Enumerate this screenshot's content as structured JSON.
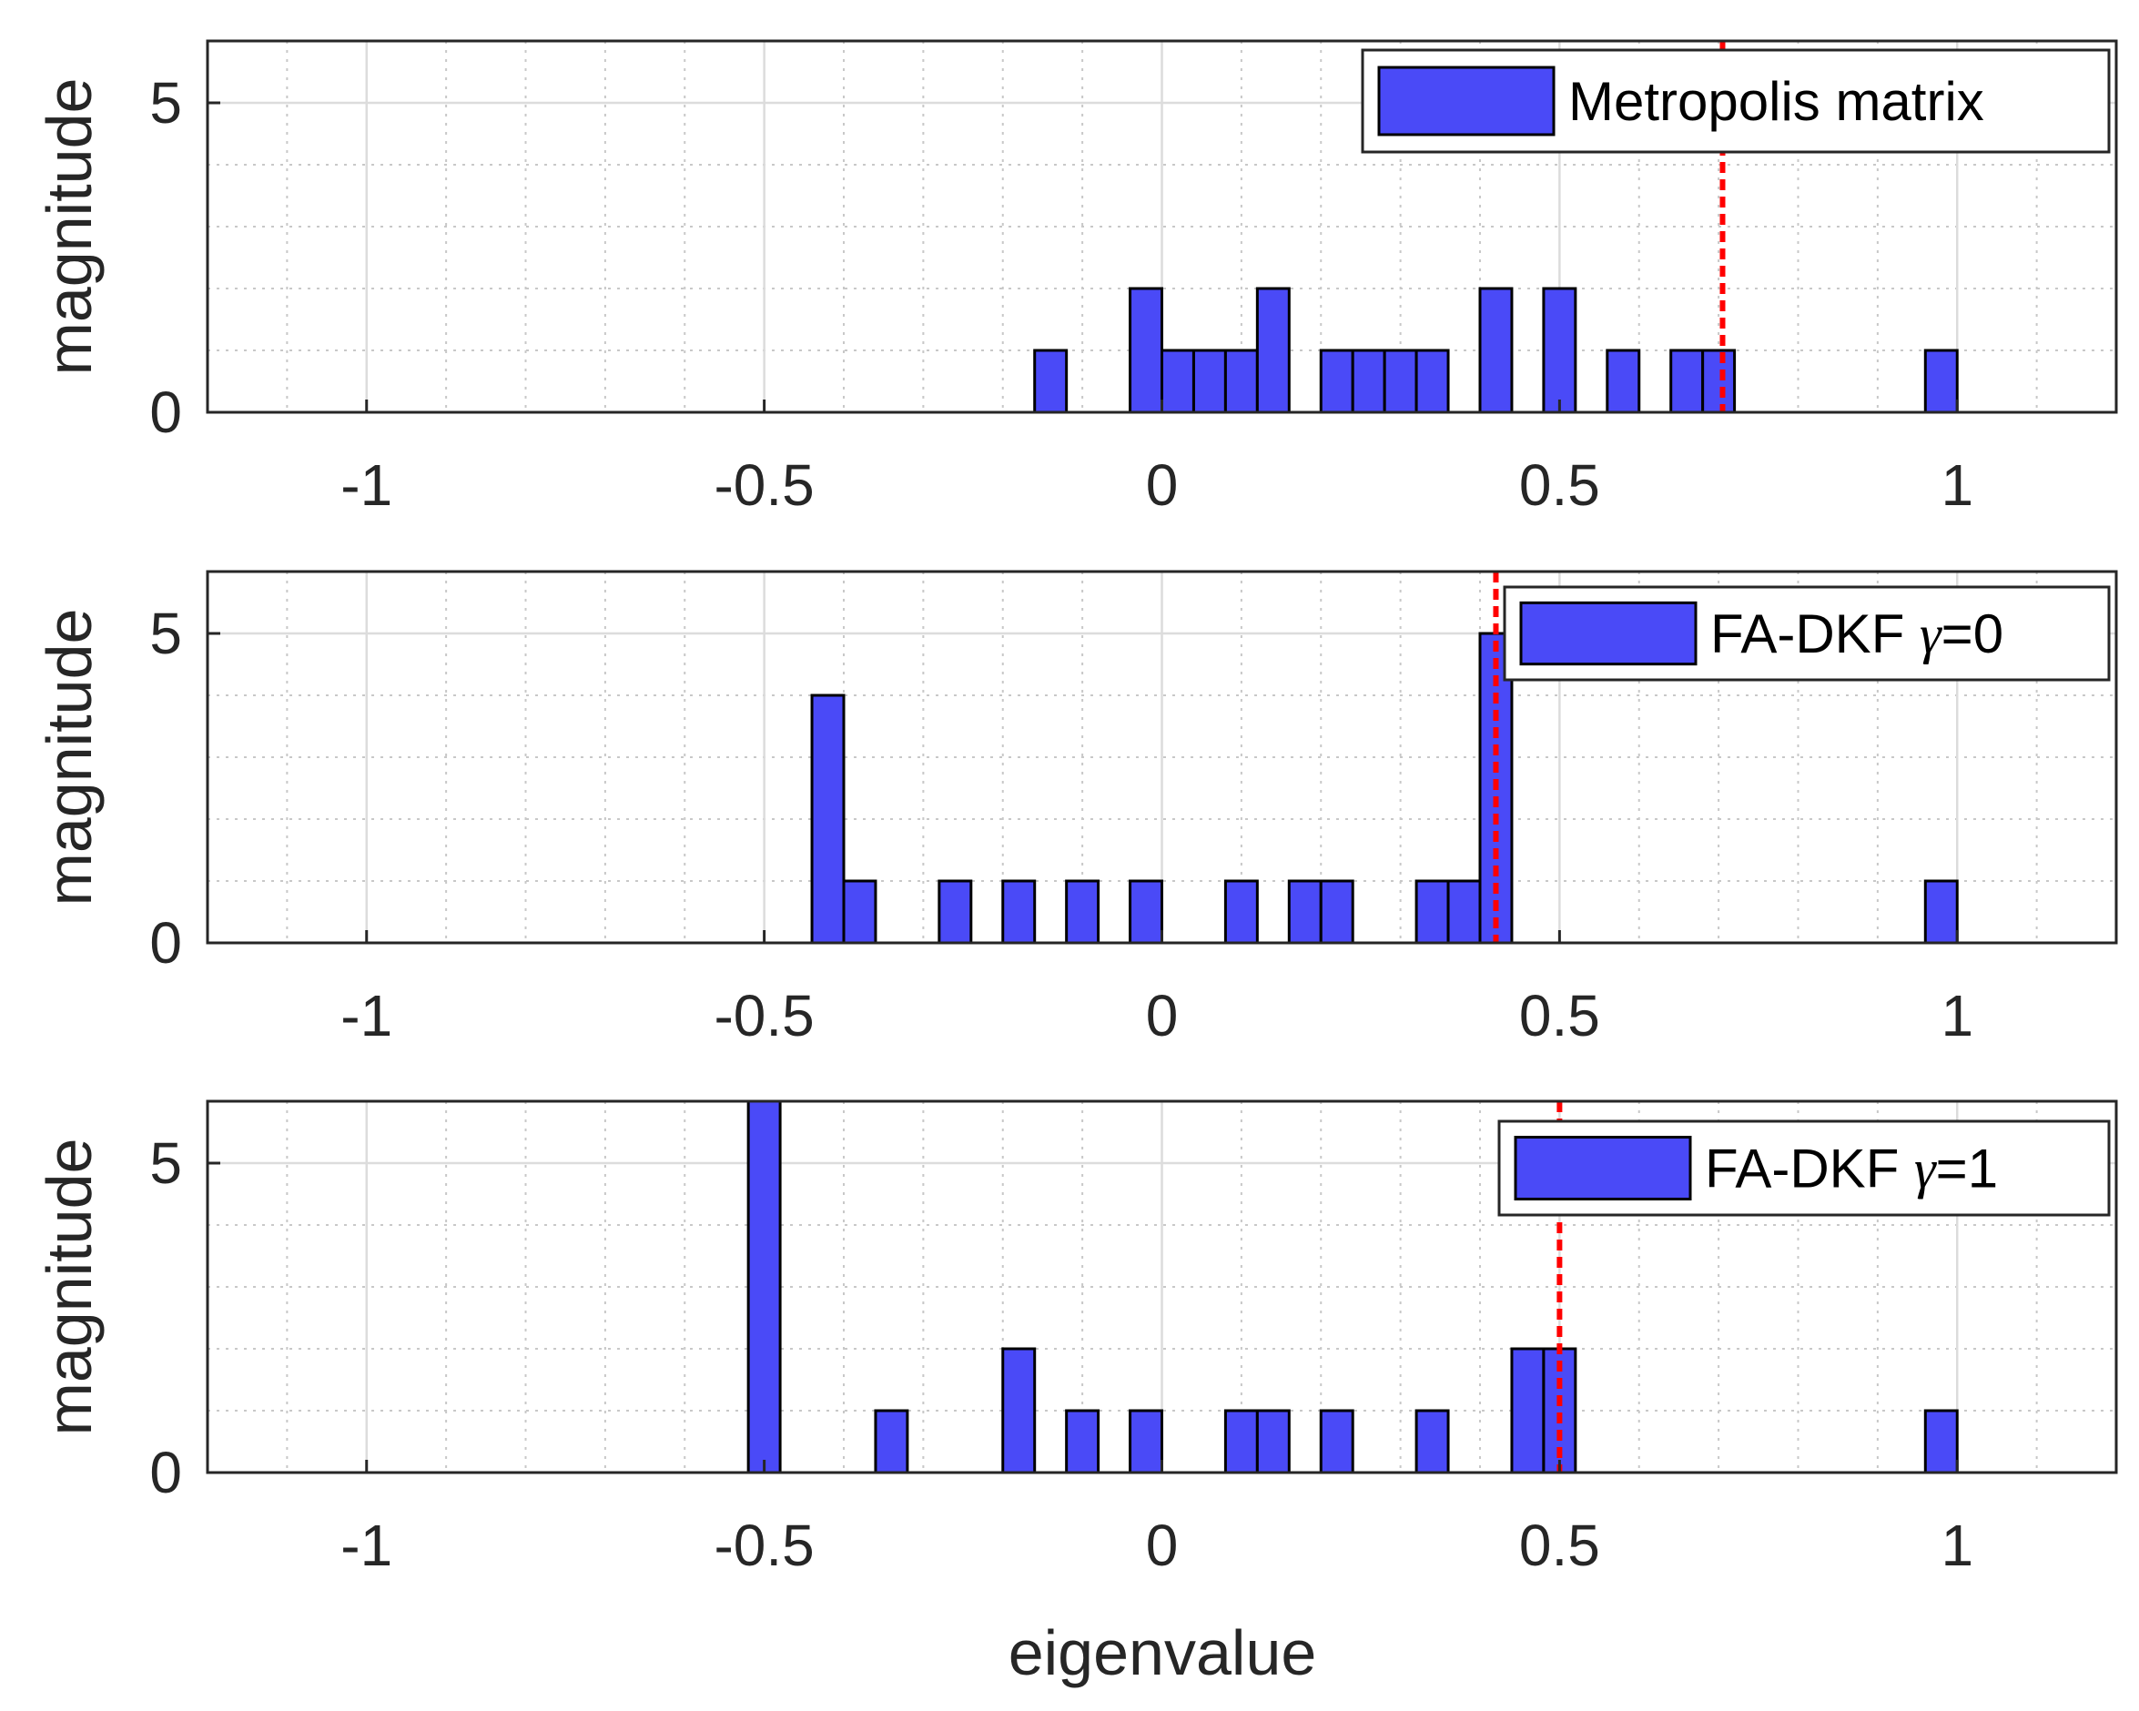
{
  "chart_data": [
    {
      "type": "bar",
      "title": "",
      "xlabel": "",
      "ylabel": "magnitude",
      "xlim": [
        -1.2,
        1.2
      ],
      "ylim": [
        0,
        6
      ],
      "bin_width": 0.04,
      "xticks": [
        "-1",
        "-0.5",
        "0",
        "0.5",
        "1"
      ],
      "yticks": [
        "0",
        "5"
      ],
      "grid": true,
      "legend": {
        "label": "Metropolis matrix",
        "position": "top-right"
      },
      "reference_line": 0.705,
      "bins": [
        {
          "x": -0.14,
          "count": 1
        },
        {
          "x": -0.02,
          "count": 2
        },
        {
          "x": 0.02,
          "count": 1
        },
        {
          "x": 0.06,
          "count": 1
        },
        {
          "x": 0.1,
          "count": 1
        },
        {
          "x": 0.14,
          "count": 2
        },
        {
          "x": 0.22,
          "count": 1
        },
        {
          "x": 0.26,
          "count": 1
        },
        {
          "x": 0.3,
          "count": 1
        },
        {
          "x": 0.34,
          "count": 1
        },
        {
          "x": 0.42,
          "count": 2
        },
        {
          "x": 0.5,
          "count": 2
        },
        {
          "x": 0.58,
          "count": 1
        },
        {
          "x": 0.66,
          "count": 1
        },
        {
          "x": 0.7,
          "count": 1
        },
        {
          "x": 0.98,
          "count": 1
        }
      ]
    },
    {
      "type": "bar",
      "title": "",
      "xlabel": "",
      "ylabel": "magnitude",
      "xlim": [
        -1.2,
        1.2
      ],
      "ylim": [
        0,
        6
      ],
      "bin_width": 0.04,
      "xticks": [
        "-1",
        "-0.5",
        "0",
        "0.5",
        "1"
      ],
      "yticks": [
        "0",
        "5"
      ],
      "grid": true,
      "legend": {
        "label": "FA-DKF",
        "symbol": "γ",
        "value": "=0",
        "position": "top-right"
      },
      "reference_line": 0.42,
      "bins": [
        {
          "x": -0.42,
          "count": 4
        },
        {
          "x": -0.38,
          "count": 1
        },
        {
          "x": -0.26,
          "count": 1
        },
        {
          "x": -0.18,
          "count": 1
        },
        {
          "x": -0.1,
          "count": 1
        },
        {
          "x": -0.02,
          "count": 1
        },
        {
          "x": 0.1,
          "count": 1
        },
        {
          "x": 0.18,
          "count": 1
        },
        {
          "x": 0.22,
          "count": 1
        },
        {
          "x": 0.34,
          "count": 1
        },
        {
          "x": 0.38,
          "count": 1
        },
        {
          "x": 0.42,
          "count": 5
        },
        {
          "x": 0.98,
          "count": 1
        }
      ]
    },
    {
      "type": "bar",
      "title": "",
      "xlabel": "eigenvalue",
      "ylabel": "magnitude",
      "xlim": [
        -1.2,
        1.2
      ],
      "ylim": [
        0,
        6
      ],
      "bin_width": 0.04,
      "xticks": [
        "-1",
        "-0.5",
        "0",
        "0.5",
        "1"
      ],
      "yticks": [
        "0",
        "5"
      ],
      "grid": true,
      "legend": {
        "label": "FA-DKF",
        "symbol": "γ",
        "value": "=1",
        "position": "top-right"
      },
      "reference_line": 0.5,
      "bins": [
        {
          "x": -0.5,
          "count": 6
        },
        {
          "x": -0.34,
          "count": 1
        },
        {
          "x": -0.18,
          "count": 2
        },
        {
          "x": -0.1,
          "count": 1
        },
        {
          "x": -0.02,
          "count": 1
        },
        {
          "x": 0.1,
          "count": 1
        },
        {
          "x": 0.14,
          "count": 1
        },
        {
          "x": 0.22,
          "count": 1
        },
        {
          "x": 0.34,
          "count": 1
        },
        {
          "x": 0.46,
          "count": 2
        },
        {
          "x": 0.5,
          "count": 2
        },
        {
          "x": 0.98,
          "count": 1
        }
      ]
    }
  ],
  "colors": {
    "bar_fill": "#4a4af7",
    "bar_edge": "#000000",
    "reference_line": "#ff0000",
    "grid_major": "#dcdcdc",
    "grid_minor": "#c8c8c8",
    "axis": "#262626",
    "text": "#262626"
  }
}
